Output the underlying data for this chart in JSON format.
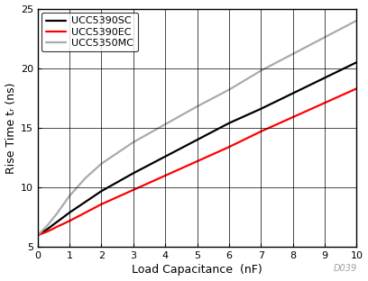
{
  "xlabel": "Load Capacitance  (nF)",
  "ylabel": "Rise Time tᵣ (ns)",
  "xlim": [
    0,
    10
  ],
  "ylim": [
    5,
    25
  ],
  "xticks": [
    0,
    1,
    2,
    3,
    4,
    5,
    6,
    7,
    8,
    9,
    10
  ],
  "yticks": [
    5,
    10,
    15,
    20,
    25
  ],
  "lines": [
    {
      "label": "UCC5390SC",
      "color": "#000000",
      "x": [
        0,
        0.3,
        0.6,
        1.0,
        1.5,
        2,
        3,
        4,
        5,
        6,
        7,
        8,
        9,
        10
      ],
      "y": [
        6.0,
        6.5,
        7.1,
        7.9,
        8.8,
        9.7,
        11.2,
        12.6,
        14.0,
        15.4,
        16.6,
        17.9,
        19.2,
        20.5
      ]
    },
    {
      "label": "UCC5390EC",
      "color": "#ff0000",
      "x": [
        0,
        0.3,
        0.6,
        1.0,
        1.5,
        2,
        3,
        4,
        5,
        6,
        7,
        8,
        9,
        10
      ],
      "y": [
        6.0,
        6.3,
        6.7,
        7.2,
        7.9,
        8.6,
        9.8,
        11.0,
        12.2,
        13.4,
        14.7,
        15.9,
        17.1,
        18.3
      ]
    },
    {
      "label": "UCC5350MC",
      "color": "#aaaaaa",
      "x": [
        0,
        0.3,
        0.6,
        1.0,
        1.5,
        2,
        3,
        4,
        5,
        6,
        7,
        8,
        9,
        10
      ],
      "y": [
        6.0,
        6.8,
        7.8,
        9.3,
        10.8,
        12.0,
        13.8,
        15.3,
        16.8,
        18.2,
        19.8,
        21.2,
        22.6,
        24.0
      ]
    }
  ],
  "legend_loc": "upper left",
  "watermark": "D039",
  "bg_color": "#ffffff",
  "linewidth": 1.6,
  "grid_color": "#000000",
  "grid_linewidth": 0.5,
  "tick_labelsize": 8,
  "label_fontsize": 9,
  "legend_fontsize": 8
}
